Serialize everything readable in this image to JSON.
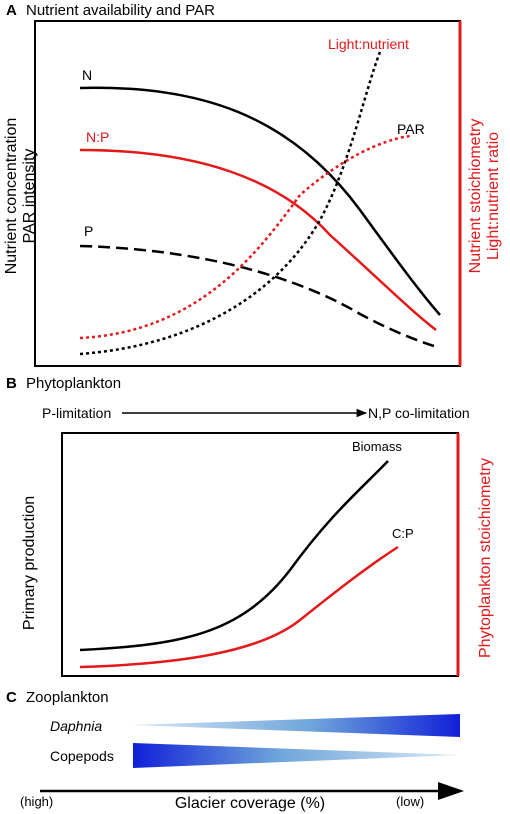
{
  "panel_a": {
    "letter": "A",
    "title": "Nutrient availability and PAR",
    "ylabel_left": [
      "Nutrient concentration",
      "PAR intensity"
    ],
    "ylabel_right": [
      "Nutrient stoichiometry",
      "Light:nutrient ratio"
    ],
    "curve_labels": {
      "n": "N",
      "np": "N:P",
      "p": "P",
      "par": "PAR",
      "light_nutrient": "Light:nutrient"
    }
  },
  "panel_b": {
    "letter": "B",
    "title": "Phytoplankton",
    "arrow_start_label": "P-limitation",
    "arrow_end_label": "N,P co-limitation",
    "ylabel_left": "Primary production",
    "ylabel_right": "Phytoplankton stoichiometry",
    "curve_labels": {
      "biomass": "Biomass",
      "cp": "C:P"
    }
  },
  "panel_c": {
    "letter": "C",
    "title": "Zooplankton",
    "rows": [
      {
        "label": "Daphnia"
      },
      {
        "label": "Copepods"
      }
    ]
  },
  "axis": {
    "label": "Glacier coverage (%)",
    "left_end": "(high)",
    "right_end": "(low)"
  },
  "colors": {
    "black": "#000000",
    "red": "#e3191c",
    "wedge_dark": "#1020d8",
    "wedge_light": "#9ec3e3"
  }
}
